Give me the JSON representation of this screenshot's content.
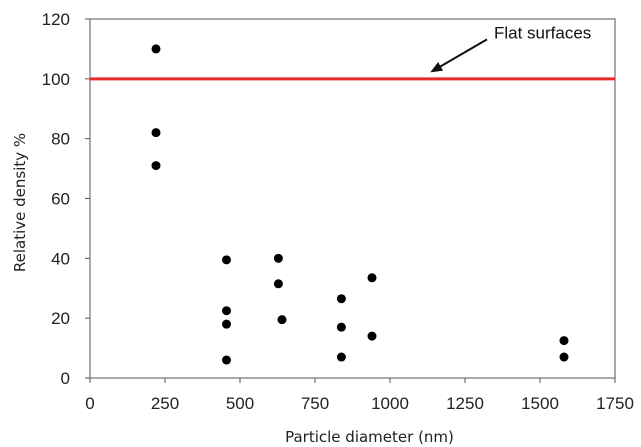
{
  "chart_data": {
    "type": "scatter",
    "title": "",
    "xlabel": "Particle diameter (nm)",
    "ylabel": "Relative density %",
    "xlim": [
      0,
      1750
    ],
    "ylim": [
      0,
      120
    ],
    "x_ticks": [
      0,
      250,
      500,
      750,
      1000,
      1250,
      1500,
      1750
    ],
    "y_ticks": [
      0,
      20,
      40,
      60,
      80,
      100,
      120
    ],
    "grid": false,
    "legend": "none",
    "series": [
      {
        "points": [
          {
            "x": 220,
            "y": 110
          },
          {
            "x": 220,
            "y": 82
          },
          {
            "x": 220,
            "y": 71
          },
          {
            "x": 455,
            "y": 39.5
          },
          {
            "x": 455,
            "y": 22.5
          },
          {
            "x": 455,
            "y": 18
          },
          {
            "x": 455,
            "y": 6
          },
          {
            "x": 628,
            "y": 40
          },
          {
            "x": 628,
            "y": 31.5
          },
          {
            "x": 640,
            "y": 19.5
          },
          {
            "x": 838,
            "y": 26.5
          },
          {
            "x": 838,
            "y": 17
          },
          {
            "x": 838,
            "y": 7
          },
          {
            "x": 940,
            "y": 33.5
          },
          {
            "x": 940,
            "y": 14
          },
          {
            "x": 1580,
            "y": 12.5
          },
          {
            "x": 1580,
            "y": 7
          }
        ],
        "color": "#000000"
      }
    ],
    "reference_line": {
      "y": 100,
      "color": "#e32b2b"
    },
    "annotations": [
      {
        "text": "Flat surfaces",
        "points_to": {
          "x": 1140,
          "y": 102.5
        }
      }
    ]
  }
}
